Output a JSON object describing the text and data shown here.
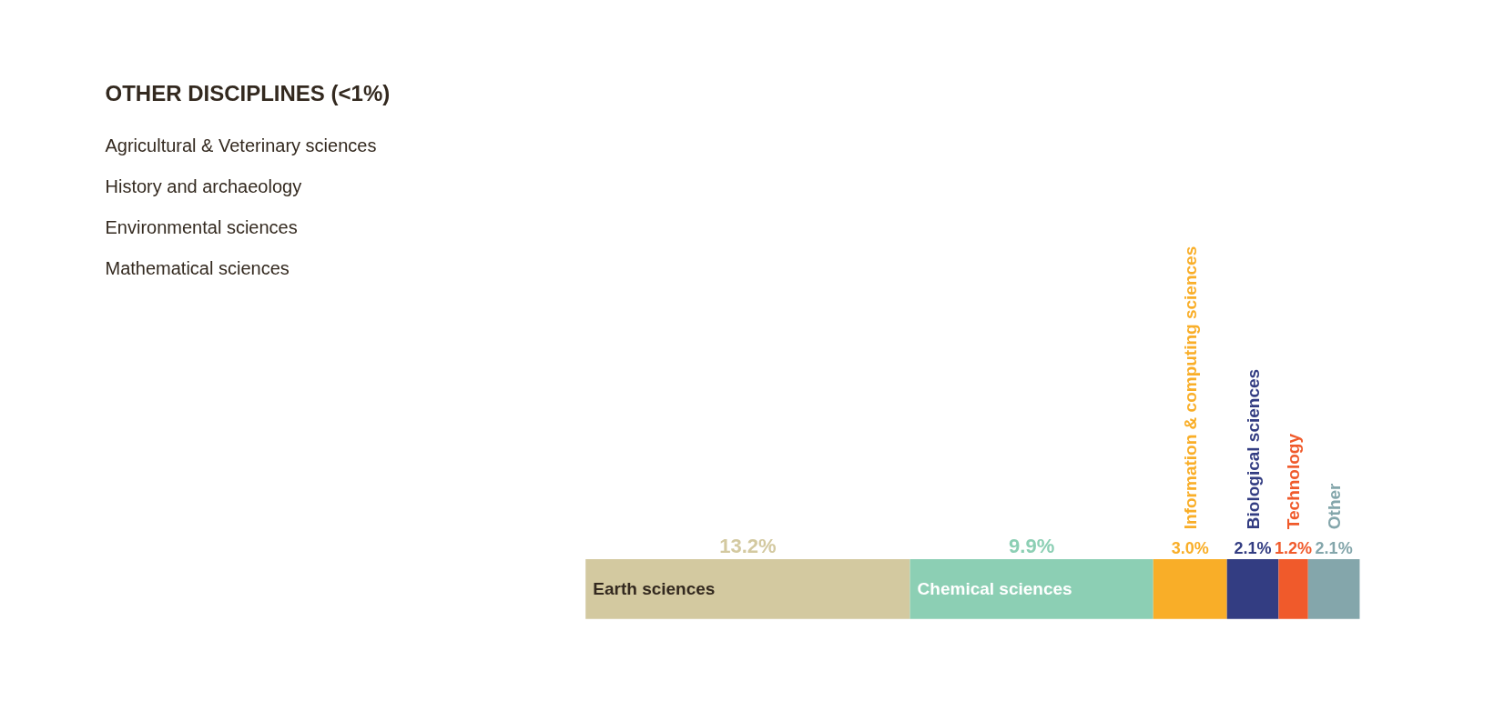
{
  "chart_data": {
    "type": "bar",
    "orientation": "horizontal",
    "stacked": true,
    "categories": [
      null
    ],
    "tick_labels": false,
    "grid": false,
    "series": [
      {
        "name": "Earth sciences",
        "color": "#d3c9a0",
        "values": [
          13.2
        ],
        "value_labels": [
          "13.2%"
        ]
      },
      {
        "name": "Chemical sciences",
        "color": "#8ccfb4",
        "values": [
          9.9
        ],
        "value_labels": [
          "9.9%"
        ]
      },
      {
        "name": "Information & computing sciences",
        "color": "#f9ae28",
        "values": [
          3.0
        ],
        "value_labels": [
          "3.0%"
        ]
      },
      {
        "name": "Biological sciences",
        "color": "#333d82",
        "values": [
          2.1
        ],
        "value_labels": [
          "2.1%"
        ]
      },
      {
        "name": "Technology",
        "color": "#f05a2b",
        "values": [
          1.2
        ],
        "value_labels": [
          "1.2%"
        ]
      },
      {
        "name": "Other",
        "color": "#84a6ab",
        "values": [
          2.1
        ],
        "value_labels": [
          "2.1%"
        ]
      }
    ],
    "annotations": [
      "OTHER DISCIPLINES (<1%)",
      "Agricultural & Veterinary sciences",
      "History and archaeology",
      "Environmental sciences",
      "Mathematical sciences"
    ]
  }
}
